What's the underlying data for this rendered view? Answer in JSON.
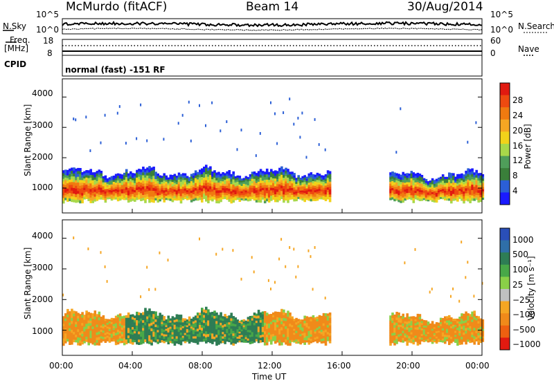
{
  "header": {
    "station": "McMurdo (fitACF)",
    "beam": "Beam 14",
    "date": "30/Aug/2014"
  },
  "top_panels": {
    "nsky_label": "N.Sky",
    "nsearch_label": "N.Search",
    "noise_ticks": [
      "10^5",
      "10^0"
    ],
    "freq_label": "Freq.",
    "freq_unit": "[MHz]",
    "freq_ticks": [
      "18",
      "8"
    ],
    "nave_label": "Nave",
    "nave_ticks": [
      "60",
      "0"
    ],
    "cpid_label": "CPID",
    "cpid_text": "normal (fast) -151 RF"
  },
  "colors": {
    "power_scale": [
      "#1a1aff",
      "#2b5fd6",
      "#3a7f3a",
      "#4f9e5a",
      "#a8d84a",
      "#f2d21a",
      "#f5a623",
      "#f07a10",
      "#ee4a10",
      "#e11a10"
    ],
    "velocity_scale": [
      "#2a4fb8",
      "#2f6fa8",
      "#2e7d55",
      "#48a848",
      "#8ad048",
      "#c0c0c0",
      "#f5a623",
      "#f08a1a",
      "#ee6010",
      "#e11a10"
    ]
  },
  "chart_data": [
    {
      "type": "heatmap",
      "title": "",
      "xlabel": "Time UT",
      "ylabel": "Slant Range [km]",
      "x_ticks": [
        "00:00",
        "04:00",
        "08:00",
        "12:00",
        "16:00",
        "20:00",
        "00:00"
      ],
      "y_ticks": [
        "1000",
        "2000",
        "3000",
        "4000"
      ],
      "xlim": [
        0,
        24
      ],
      "ylim": [
        180,
        4600
      ],
      "colorbar_label": "Power [dB]",
      "colorbar_ticks": [
        "4",
        "8",
        "12",
        "16",
        "20",
        "24",
        "28"
      ],
      "colorbar_range": [
        0,
        32
      ],
      "backscatter_regions": [
        {
          "t_start": 0.0,
          "t_end": 15.3,
          "range_min_km": 500,
          "range_max_km": 1600,
          "peak_value_db": 30
        },
        {
          "t_start": 18.7,
          "t_end": 24.0,
          "range_min_km": 500,
          "range_max_km": 1500,
          "peak_value_db": 30
        }
      ]
    },
    {
      "type": "heatmap",
      "title": "",
      "xlabel": "Time UT",
      "ylabel": "Slant Range [km]",
      "x_ticks": [
        "00:00",
        "04:00",
        "08:00",
        "12:00",
        "16:00",
        "20:00",
        "00:00"
      ],
      "y_ticks": [
        "1000",
        "2000",
        "3000",
        "4000"
      ],
      "xlim": [
        0,
        24
      ],
      "ylim": [
        180,
        4600
      ],
      "colorbar_label": "Velocity [m s⁻¹]",
      "colorbar_ticks": [
        "1000",
        "500",
        "100",
        "25",
        "−25",
        "−100",
        "−500",
        "−1000"
      ],
      "backscatter_regions": [
        {
          "t_start": 0.0,
          "t_end": 15.3,
          "range_min_km": 500,
          "range_max_km": 1600
        },
        {
          "t_start": 18.7,
          "t_end": 24.0,
          "range_min_km": 500,
          "range_max_km": 1500
        }
      ]
    }
  ]
}
